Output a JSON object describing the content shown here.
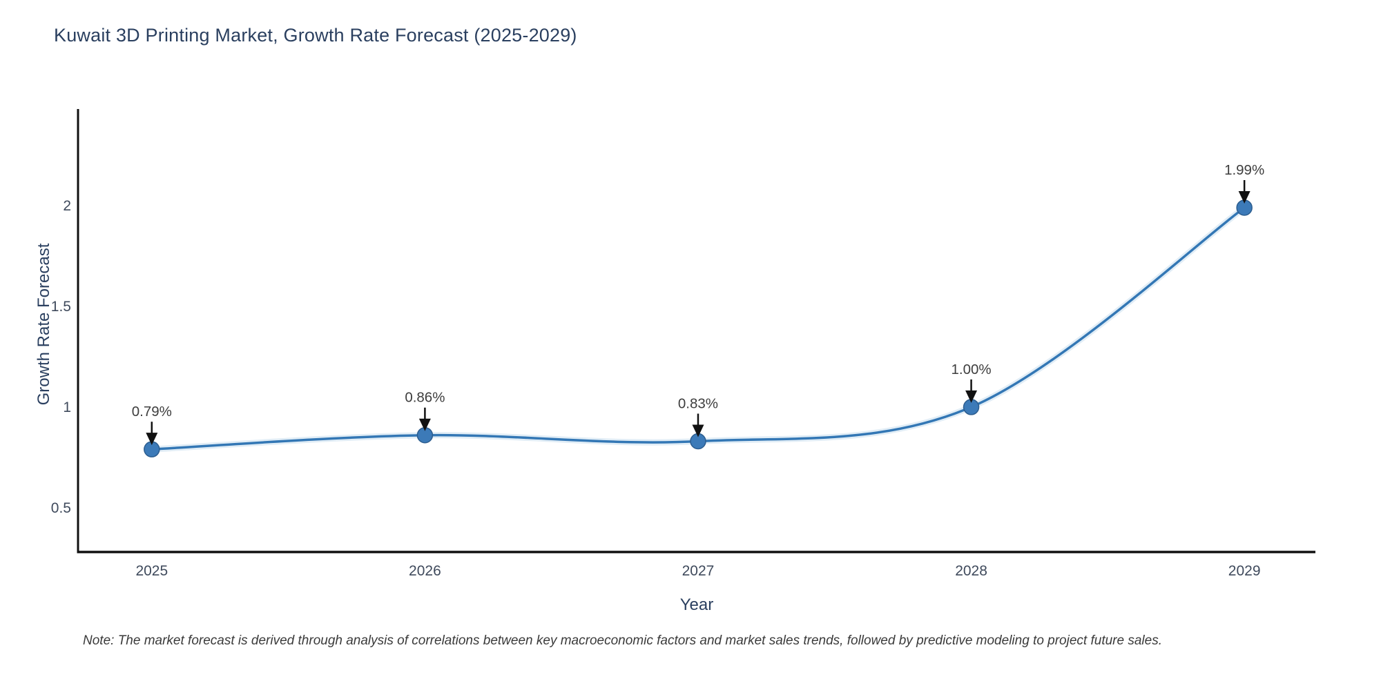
{
  "header": {
    "title": "Kuwait 3D Printing Market, Growth Rate Forecast (2025-2029)"
  },
  "footnote": {
    "text": "Note: The market forecast is derived through analysis of correlations between key macroeconomic factors and market sales trends, followed by predictive modeling to project future sales."
  },
  "chart_data": {
    "type": "line",
    "title": "Kuwait 3D Printing Market, Growth Rate Forecast (2025-2029)",
    "xlabel": "Year",
    "ylabel": "Growth Rate Forecast",
    "line_shape": "spline",
    "grid": false,
    "legend": "none",
    "categories": [
      2025,
      2026,
      2027,
      2028,
      2029
    ],
    "series": [
      {
        "name": "Growth Rate Forecast",
        "values": [
          0.79,
          0.86,
          0.83,
          1.0,
          1.99
        ]
      }
    ],
    "point_labels": [
      "0.79%",
      "0.86%",
      "0.83%",
      "1.00%",
      "1.99%"
    ],
    "x_tick_labels": [
      "2025",
      "2026",
      "2027",
      "2028",
      "2029"
    ],
    "y_ticks": [
      0.5,
      1,
      1.5,
      2
    ],
    "y_tick_labels": [
      "0.5",
      "1",
      "1.5",
      "2"
    ],
    "xlim": [
      2024.73,
      2029.26
    ],
    "ylim": [
      0.28,
      2.48
    ],
    "colors": {
      "line": "#3377b5",
      "line_halo": "#bcd6ec",
      "marker_fill": "#3c7ab8",
      "marker_edge": "#2c5d8f",
      "annotation_text": "#3d3d3d",
      "annotation_arrow": "#111111",
      "axis_line": "#111111",
      "tick_label": "#3f4a5c",
      "title_text": "#2a3f5f"
    }
  }
}
